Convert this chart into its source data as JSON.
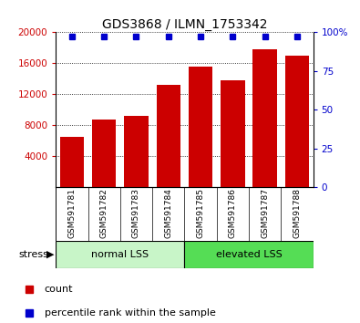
{
  "title": "GDS3868 / ILMN_1753342",
  "categories": [
    "GSM591781",
    "GSM591782",
    "GSM591783",
    "GSM591784",
    "GSM591785",
    "GSM591786",
    "GSM591787",
    "GSM591788"
  ],
  "bar_values": [
    6500,
    8800,
    9200,
    13200,
    15600,
    13800,
    17800,
    17000
  ],
  "percentile_values": [
    97,
    97,
    97,
    97,
    97,
    97,
    97,
    97
  ],
  "bar_color": "#cc0000",
  "percentile_color": "#0000cc",
  "ylim_left": [
    0,
    20000
  ],
  "ylim_right": [
    0,
    100
  ],
  "yticks_left": [
    4000,
    8000,
    12000,
    16000,
    20000
  ],
  "yticks_right": [
    0,
    25,
    50,
    75,
    100
  ],
  "group1_label": "normal LSS",
  "group2_label": "elevated LSS",
  "group1_indices": [
    0,
    1,
    2,
    3
  ],
  "group2_indices": [
    4,
    5,
    6,
    7
  ],
  "stress_label": "stress",
  "legend_count_label": "count",
  "legend_percentile_label": "percentile rank within the sample",
  "group1_color": "#c8f5c8",
  "group2_color": "#55dd55",
  "xlabel_area_color": "#d8d8d8",
  "title_fontsize": 10,
  "tick_fontsize": 7.5,
  "cat_fontsize": 6.5,
  "group_fontsize": 8,
  "legend_fontsize": 8
}
